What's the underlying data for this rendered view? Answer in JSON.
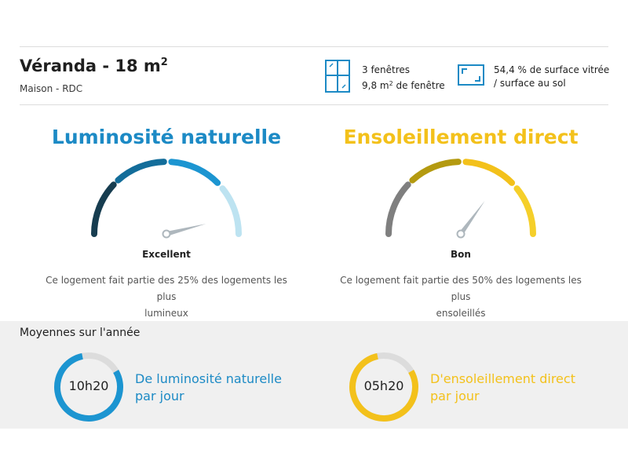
{
  "room": {
    "title": "Véranda - 18 m",
    "title_sup": "2",
    "subtitle": "Maison - RDC"
  },
  "windows": {
    "icon": "window-icon",
    "line1": "3 fenêtres",
    "line2_prefix": "9,8 m",
    "line2_sup": "2",
    "line2_suffix": " de fenêtre"
  },
  "surface": {
    "icon": "floor-surface-icon",
    "line1": "54,4 % de surface vitrée",
    "line2": "/ surface au sol"
  },
  "luminosity": {
    "title": "Luminosité naturelle",
    "rating": "Excellent",
    "level_fraction": 0.92,
    "description_line1": "Ce logement fait partie des 25% des logements les plus",
    "description_line2": "lumineux",
    "colors": [
      "#173d50",
      "#136d9a",
      "#1c95d1",
      "#bde3f1"
    ]
  },
  "sunshine": {
    "title": "Ensoleillement direct",
    "rating": "Bon",
    "level_fraction": 0.7,
    "description_line1": "Ce logement fait partie des 50% des logements les plus",
    "description_line2": "ensoleillés",
    "colors": [
      "#7f7f7f",
      "#b49a10",
      "#f3c11b",
      "#f5cf2a"
    ]
  },
  "averages": {
    "title": "Moyennes sur l'année",
    "light": {
      "value": "10h20",
      "line1": "De luminosité naturelle",
      "line2": "par jour",
      "fraction": 0.8,
      "color": "#1c95d1"
    },
    "sun": {
      "value": "05h20",
      "line1": "D'ensoleillement direct",
      "line2": "par jour",
      "fraction": 0.8,
      "color": "#f3c11b"
    }
  }
}
